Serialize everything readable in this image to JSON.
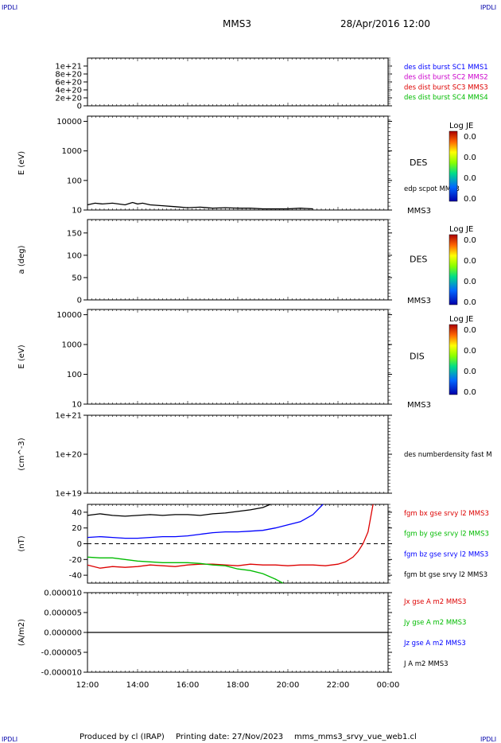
{
  "header": {
    "corner_left": "IPDLI",
    "corner_right": "IPDLI",
    "corner_bottom_left": "IPDLI",
    "corner_bottom_right": "IPDLI",
    "spacecraft": "MMS3",
    "datetime": "28/Apr/2016 12:00"
  },
  "footer": {
    "produced_by": "Produced by cl (IRAP)",
    "printing_date": "Printing date: 27/Nov/2023",
    "file": "mms_mms3_srvy_vue_web1.cl"
  },
  "colors": {
    "black": "#000000",
    "blue": "#0000ff",
    "magenta": "#cc00cc",
    "red": "#dd0000",
    "green": "#00bb00"
  },
  "chart_data": [
    {
      "type": "line",
      "ylabel": "",
      "yticks": [
        "1e+21",
        "8e+20",
        "6e+20",
        "4e+20",
        "2e+20",
        "0"
      ],
      "ylim": [
        0,
        1.2e+21
      ],
      "legend": [
        {
          "text": "des dist burst SC1 MMS1",
          "color": "#0000ff"
        },
        {
          "text": "des dist burst SC2 MMS2",
          "color": "#cc00cc"
        },
        {
          "text": "des dist burst SC3 MMS3",
          "color": "#dd0000"
        },
        {
          "text": "des dist burst SC4 MMS4",
          "color": "#00bb00"
        }
      ],
      "zero_line": "dashed"
    },
    {
      "type": "heatmap",
      "ylabel": "E (eV)",
      "yticks": [
        "10000",
        "1000",
        "100",
        "10"
      ],
      "scale": "log",
      "ylim": [
        10,
        15000
      ],
      "label": "DES",
      "sublabel": "MMS3",
      "overlay_label": "edp scpot MMS3",
      "colorbar": {
        "title": "Log JE",
        "ticks": [
          "0.0",
          "0.0",
          "0.0",
          "0.0"
        ]
      },
      "series": [
        {
          "name": "edp scpot MMS3",
          "x": [
            0,
            0.3,
            0.6,
            1.0,
            1.5,
            1.8,
            2.0,
            2.2,
            2.5,
            3.0,
            3.5,
            4.0,
            4.5,
            5.0,
            5.5,
            6.0,
            6.5,
            7.0,
            7.5,
            8.0,
            8.5,
            9.0
          ],
          "values": [
            15,
            17,
            16,
            17,
            15,
            18,
            16,
            17,
            15,
            14,
            13,
            12,
            12.5,
            11.5,
            12,
            11.5,
            11.5,
            11,
            11,
            11,
            11.5,
            11
          ]
        }
      ]
    },
    {
      "type": "heatmap",
      "ylabel": "a (deg)",
      "yticks": [
        "150",
        "100",
        "50",
        "0"
      ],
      "ylim": [
        0,
        180
      ],
      "label": "DES",
      "sublabel": "MMS3",
      "colorbar": {
        "title": "Log JE",
        "ticks": [
          "0.0",
          "0.0",
          "0.0",
          "0.0"
        ]
      }
    },
    {
      "type": "heatmap",
      "ylabel": "E (eV)",
      "yticks": [
        "10000",
        "1000",
        "100",
        "10"
      ],
      "scale": "log",
      "ylim": [
        10,
        15000
      ],
      "label": "DIS",
      "sublabel": "MMS3",
      "colorbar": {
        "title": "Log JE",
        "ticks": [
          "0.0",
          "0.0",
          "0.0",
          "0.0"
        ]
      }
    },
    {
      "type": "line",
      "ylabel": "(cm^-3)",
      "yticks": [
        "1e+21",
        "1e+20",
        "1e+19"
      ],
      "scale": "log",
      "ylim": [
        1e+19,
        1e+21
      ],
      "legend": [
        {
          "text": "des numberdensity fast M",
          "color": "#000000"
        }
      ]
    },
    {
      "type": "line",
      "ylabel": "(nT)",
      "yticks": [
        "40",
        "20",
        "0",
        "-20",
        "-40"
      ],
      "ylim": [
        -50,
        50
      ],
      "zero_line": "dashed",
      "legend": [
        {
          "text": "fgm bx gse srvy l2 MMS3",
          "color": "#dd0000"
        },
        {
          "text": "fgm by gse srvy l2 MMS3",
          "color": "#00bb00"
        },
        {
          "text": "fgm bz gse srvy l2 MMS3",
          "color": "#0000ff"
        },
        {
          "text": "fgm bt gse srvy l2 MMS3",
          "color": "#000000"
        }
      ],
      "series": [
        {
          "name": "fgm bx gse srvy l2 MMS3",
          "color": "#dd0000",
          "x": [
            0,
            0.5,
            1.0,
            1.5,
            2.0,
            2.5,
            3.0,
            3.5,
            4.0,
            4.5,
            5.0,
            5.5,
            6.0,
            6.5,
            7.0,
            7.5,
            8.0,
            8.5,
            9.0,
            9.5,
            10.0,
            10.3,
            10.6,
            10.8,
            11.0,
            11.2,
            11.4
          ],
          "values": [
            -27,
            -31,
            -29,
            -30,
            -29,
            -27,
            -28,
            -29,
            -27,
            -26,
            -26,
            -27,
            -28,
            -26,
            -27,
            -27,
            -28,
            -27,
            -27,
            -28,
            -26,
            -23,
            -17,
            -10,
            0,
            15,
            50
          ]
        },
        {
          "name": "fgm by gse srvy l2 MMS3",
          "color": "#00bb00",
          "x": [
            0,
            0.5,
            1.0,
            1.5,
            2.0,
            2.5,
            3.0,
            3.5,
            4.0,
            4.5,
            5.0,
            5.5,
            6.0,
            6.5,
            7.0,
            7.5,
            7.8
          ],
          "values": [
            -17,
            -18,
            -18,
            -20,
            -22,
            -23,
            -24,
            -24,
            -24,
            -25,
            -27,
            -28,
            -32,
            -34,
            -38,
            -45,
            -50
          ]
        },
        {
          "name": "fgm bz gse srvy l2 MMS3",
          "color": "#0000ff",
          "x": [
            0,
            0.5,
            1.0,
            1.5,
            2.0,
            2.5,
            3.0,
            3.5,
            4.0,
            4.5,
            5.0,
            5.5,
            6.0,
            6.5,
            7.0,
            7.5,
            8.0,
            8.5,
            9.0,
            9.4
          ],
          "values": [
            8,
            9,
            8,
            7,
            7,
            8,
            9,
            9,
            10,
            12,
            14,
            15,
            15,
            16,
            17,
            20,
            24,
            28,
            37,
            50
          ]
        },
        {
          "name": "fgm bt gse srvy l2 MMS3",
          "color": "#000000",
          "x": [
            0,
            0.5,
            1.0,
            1.5,
            2.0,
            2.5,
            3.0,
            3.5,
            4.0,
            4.5,
            5.0,
            5.5,
            6.0,
            6.5,
            7.0,
            7.3
          ],
          "values": [
            36,
            38,
            36,
            35,
            36,
            37,
            36,
            37,
            37,
            36,
            38,
            39,
            41,
            43,
            46,
            50
          ]
        }
      ]
    },
    {
      "type": "line",
      "ylabel": "(A/m2)",
      "yticks": [
        "0.000010",
        "0.000005",
        "0.000000",
        "-0.000005",
        "-0.000010"
      ],
      "ylim": [
        -1e-05,
        1e-05
      ],
      "xlabel_ticks": [
        "12:00",
        "14:00",
        "16:00",
        "18:00",
        "20:00",
        "22:00",
        "00:00"
      ],
      "legend": [
        {
          "text": "Jx gse A m2 MMS3",
          "color": "#dd0000"
        },
        {
          "text": "Jy gse A m2 MMS3",
          "color": "#00bb00"
        },
        {
          "text": "Jz gse A m2 MMS3",
          "color": "#0000ff"
        },
        {
          "text": "J A m2 MMS3",
          "color": "#000000"
        }
      ],
      "series": [
        {
          "name": "J A m2 MMS3",
          "color": "#000000",
          "x": [
            0,
            12
          ],
          "values": [
            0,
            0
          ]
        }
      ]
    }
  ]
}
